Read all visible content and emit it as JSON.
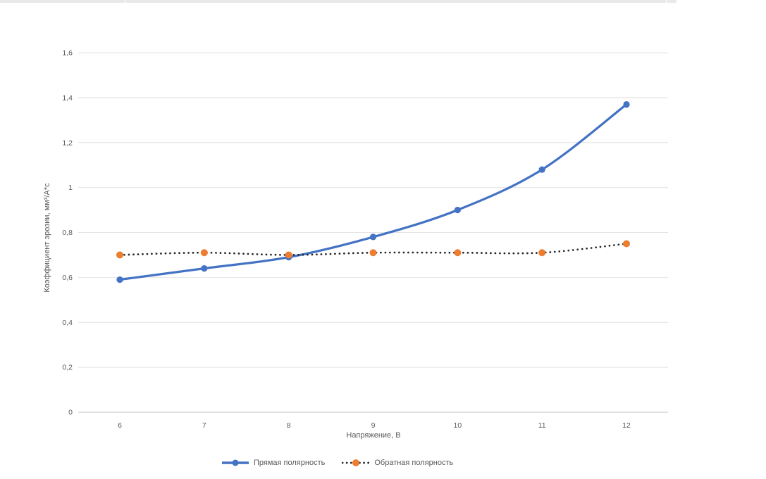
{
  "window": {
    "top_strip_color": "#e9e9e9",
    "top_strip_divider_color": "#ffffff"
  },
  "chart_data": {
    "type": "line",
    "title": "",
    "x": [
      6,
      7,
      8,
      9,
      10,
      11,
      12
    ],
    "xtick_labels": [
      "6",
      "7",
      "8",
      "9",
      "10",
      "11",
      "12"
    ],
    "series": [
      {
        "name": "Прямая полярность",
        "values": [
          0.59,
          0.64,
          0.69,
          0.78,
          0.9,
          1.08,
          1.37
        ],
        "color": "#4472C4",
        "marker_color": "#4472C4",
        "line_style": "solid",
        "marker": "circle"
      },
      {
        "name": "Обратная полярность",
        "values": [
          0.7,
          0.71,
          0.7,
          0.71,
          0.71,
          0.71,
          0.75
        ],
        "color": "#262626",
        "marker_color": "#ED7D31",
        "line_style": "dotted",
        "marker": "circle"
      }
    ],
    "xlabel": "Напряжение, В",
    "ylabel": "Коэффициент эрозии, мм³/А*с",
    "ylim": [
      0,
      1.6
    ],
    "ytick_labels": [
      "0",
      "0,2",
      "0,4",
      "0,6",
      "0,8",
      "1",
      "1,2",
      "1,4",
      "1,6"
    ],
    "grid": "horizontal",
    "legend_position": "bottom",
    "text_color": "#595959",
    "gridline_color": "#e4e4e4",
    "axis_line_color": "#c6c6c6"
  }
}
